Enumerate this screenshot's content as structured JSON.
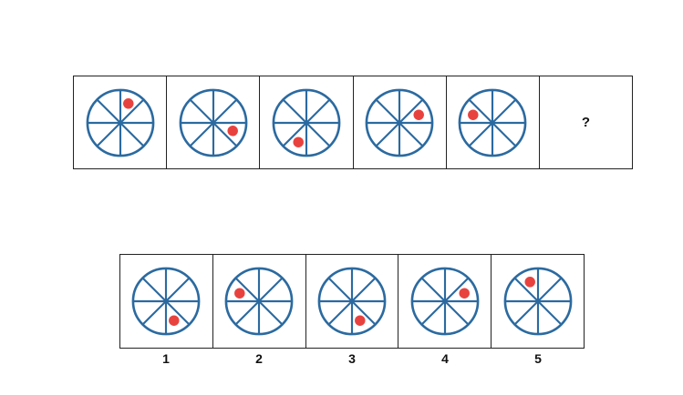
{
  "puzzle": {
    "question_mark": "?",
    "colors": {
      "wheel": "#2b6aa0",
      "dot": "#e8423f",
      "border": "#222222"
    },
    "sequence": [
      {
        "dot_sector": 0
      },
      {
        "dot_sector": 2
      },
      {
        "dot_sector": 4
      },
      {
        "dot_sector": 1
      },
      {
        "dot_sector": 6
      }
    ],
    "options": [
      {
        "label": "1",
        "dot_sector": 3
      },
      {
        "label": "2",
        "dot_sector": 6
      },
      {
        "label": "3",
        "dot_sector": 3
      },
      {
        "label": "4",
        "dot_sector": 1
      },
      {
        "label": "5",
        "dot_sector": 7
      }
    ]
  }
}
